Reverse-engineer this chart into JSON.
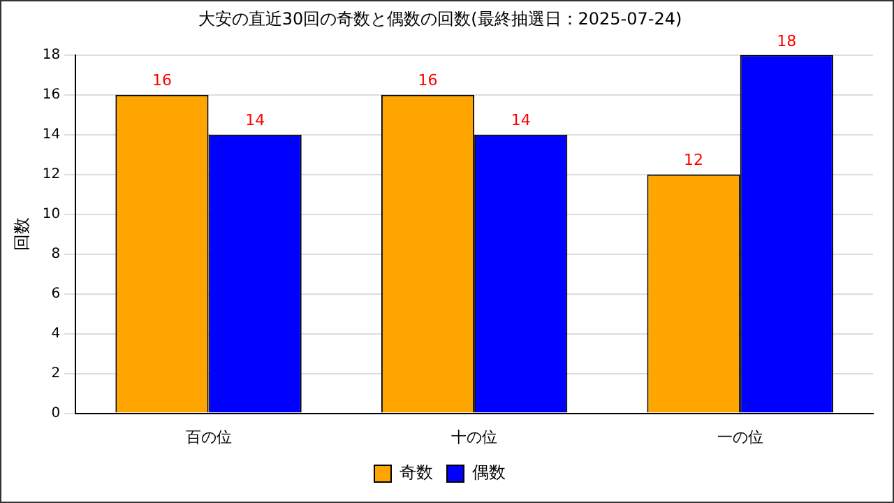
{
  "chart_data": {
    "type": "bar",
    "title": "大安の直近30回の奇数と偶数の回数(最終抽選日：2025-07-24)",
    "ylabel": "回数",
    "categories": [
      "百の位",
      "十の位",
      "一の位"
    ],
    "series": [
      {
        "name": "奇数",
        "color": "#ffa500",
        "values": [
          16,
          16,
          12
        ]
      },
      {
        "name": "偶数",
        "color": "#0000ff",
        "values": [
          14,
          14,
          18
        ]
      }
    ],
    "ylim": [
      0,
      18
    ],
    "yticks": [
      0,
      2,
      4,
      6,
      8,
      10,
      12,
      14,
      16,
      18
    ],
    "grid": "y",
    "legend": "bottom",
    "data_labels": true
  }
}
